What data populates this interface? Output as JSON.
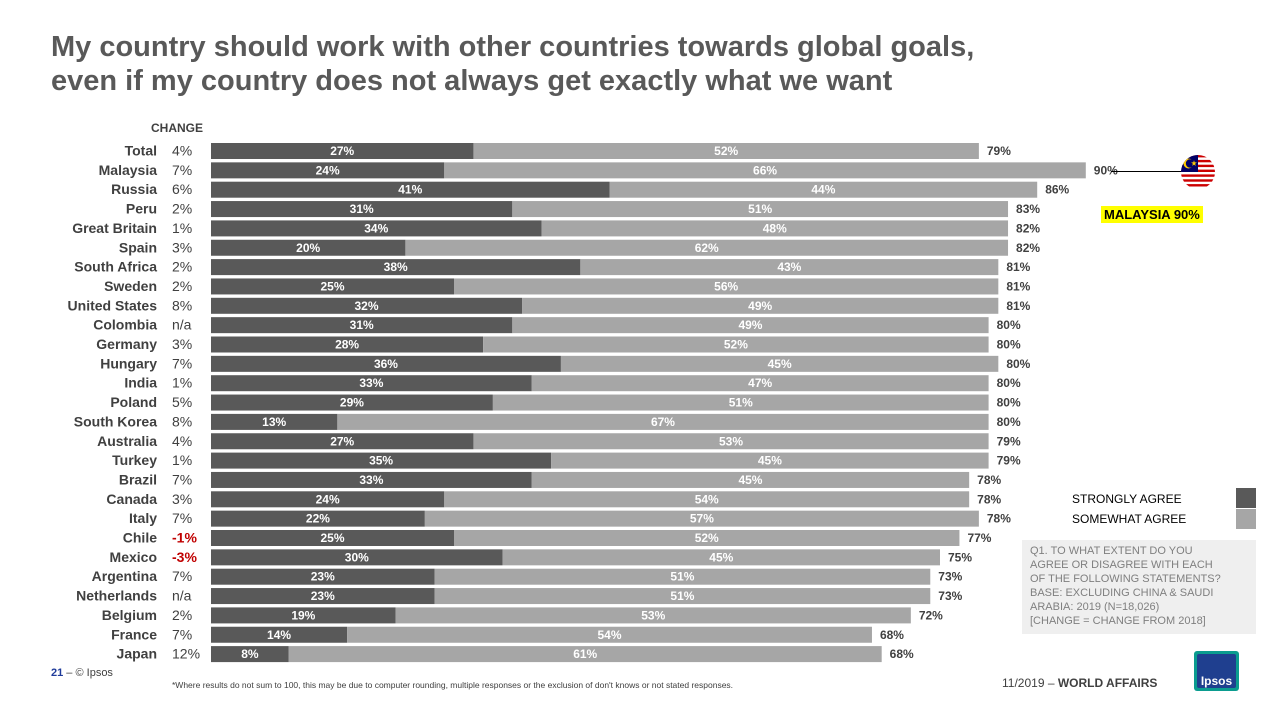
{
  "title_line1": "My country should work with other countries towards global goals,",
  "title_line2": "even if my country does not always get exactly what we want",
  "change_header": "CHANGE",
  "callout": {
    "value": "90%",
    "highlight": "MALAYSIA  90%"
  },
  "legend": {
    "strong": "STRONGLY AGREE",
    "somewhat": "SOMEWHAT AGREE",
    "strong_color": "#595959",
    "somewhat_color": "#a6a6a6"
  },
  "note": {
    "lines": [
      "Q1. TO WHAT EXTENT DO YOU",
      "AGREE OR DISAGREE WITH EACH",
      "OF THE FOLLOWING STATEMENTS?",
      "BASE:  EXCLUDING CHINA & SAUDI",
      "ARABIA:  2019 (N=18,026)",
      "[CHANGE = CHANGE FROM 2018]"
    ]
  },
  "footer": {
    "page": "21",
    "copyright": "© Ipsos",
    "footnote": "*Where results do not sum to 100, this may be due to computer rounding, multiple responses or the exclusion of don't knows or not stated responses.",
    "date": "11/2019",
    "section": "WORLD AFFAIRS",
    "logo": "Ipsos"
  },
  "chart_data": {
    "type": "bar",
    "orientation": "horizontal",
    "stacked": true,
    "series_colors": {
      "strongly_agree": "#595959",
      "somewhat_agree": "#a6a6a6",
      "negative_change": "#c00000"
    },
    "rows": [
      {
        "country": "Total",
        "change": "4%",
        "strongly_agree": 27,
        "somewhat_agree": 52,
        "total": 79
      },
      {
        "country": "Malaysia",
        "change": "7%",
        "strongly_agree": 24,
        "somewhat_agree": 66,
        "total": 90
      },
      {
        "country": "Russia",
        "change": "6%",
        "strongly_agree": 41,
        "somewhat_agree": 44,
        "total": 86
      },
      {
        "country": "Peru",
        "change": "2%",
        "strongly_agree": 31,
        "somewhat_agree": 51,
        "total": 83
      },
      {
        "country": "Great Britain",
        "change": "1%",
        "strongly_agree": 34,
        "somewhat_agree": 48,
        "total": 82
      },
      {
        "country": "Spain",
        "change": "3%",
        "strongly_agree": 20,
        "somewhat_agree": 62,
        "total": 82
      },
      {
        "country": "South Africa",
        "change": "2%",
        "strongly_agree": 38,
        "somewhat_agree": 43,
        "total": 81
      },
      {
        "country": "Sweden",
        "change": "2%",
        "strongly_agree": 25,
        "somewhat_agree": 56,
        "total": 81
      },
      {
        "country": "United States",
        "change": "8%",
        "strongly_agree": 32,
        "somewhat_agree": 49,
        "total": 81
      },
      {
        "country": "Colombia",
        "change": "n/a",
        "strongly_agree": 31,
        "somewhat_agree": 49,
        "total": 80
      },
      {
        "country": "Germany",
        "change": "3%",
        "strongly_agree": 28,
        "somewhat_agree": 52,
        "total": 80
      },
      {
        "country": "Hungary",
        "change": "7%",
        "strongly_agree": 36,
        "somewhat_agree": 45,
        "total": 80
      },
      {
        "country": "India",
        "change": "1%",
        "strongly_agree": 33,
        "somewhat_agree": 47,
        "total": 80
      },
      {
        "country": "Poland",
        "change": "5%",
        "strongly_agree": 29,
        "somewhat_agree": 51,
        "total": 80
      },
      {
        "country": "South Korea",
        "change": "8%",
        "strongly_agree": 13,
        "somewhat_agree": 67,
        "total": 80
      },
      {
        "country": "Australia",
        "change": "4%",
        "strongly_agree": 27,
        "somewhat_agree": 53,
        "total": 79
      },
      {
        "country": "Turkey",
        "change": "1%",
        "strongly_agree": 35,
        "somewhat_agree": 45,
        "total": 79
      },
      {
        "country": "Brazil",
        "change": "7%",
        "strongly_agree": 33,
        "somewhat_agree": 45,
        "total": 78
      },
      {
        "country": "Canada",
        "change": "3%",
        "strongly_agree": 24,
        "somewhat_agree": 54,
        "total": 78
      },
      {
        "country": "Italy",
        "change": "7%",
        "strongly_agree": 22,
        "somewhat_agree": 57,
        "total": 78
      },
      {
        "country": "Chile",
        "change": "-1%",
        "strongly_agree": 25,
        "somewhat_agree": 52,
        "total": 77
      },
      {
        "country": "Mexico",
        "change": "-3%",
        "strongly_agree": 30,
        "somewhat_agree": 45,
        "total": 75
      },
      {
        "country": "Argentina",
        "change": "7%",
        "strongly_agree": 23,
        "somewhat_agree": 51,
        "total": 73
      },
      {
        "country": "Netherlands",
        "change": "n/a",
        "strongly_agree": 23,
        "somewhat_agree": 51,
        "total": 73
      },
      {
        "country": "Belgium",
        "change": "2%",
        "strongly_agree": 19,
        "somewhat_agree": 53,
        "total": 72
      },
      {
        "country": "France",
        "change": "7%",
        "strongly_agree": 14,
        "somewhat_agree": 54,
        "total": 68
      },
      {
        "country": "Japan",
        "change": "12%",
        "strongly_agree": 8,
        "somewhat_agree": 61,
        "total": 68
      }
    ]
  }
}
